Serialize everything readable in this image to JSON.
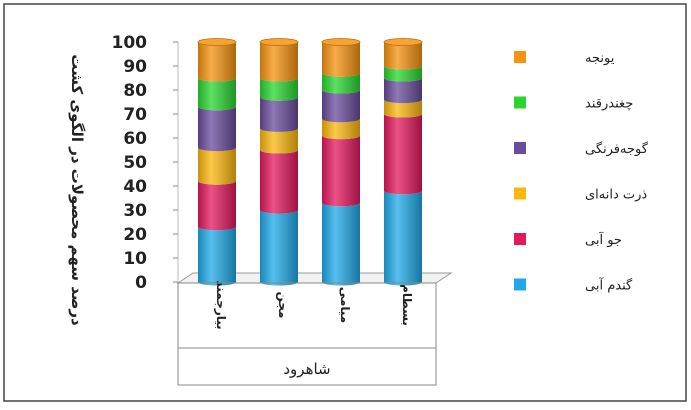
{
  "chart_data": {
    "type": "bar",
    "stacked": true,
    "ylabel": "درصد سهم محصولات در الگوی کشت",
    "xlabel": "شاهرود",
    "ylim": [
      0,
      100
    ],
    "yticks": [
      0,
      10,
      20,
      30,
      40,
      50,
      60,
      70,
      80,
      90,
      100
    ],
    "categories": [
      "بیارجمند",
      "مجن",
      "میامی",
      "بسطام"
    ],
    "legend_position": "right",
    "grid": false,
    "series": [
      {
        "name": "گندم آبی",
        "color": "#1fa9e8",
        "values": [
          23,
          30,
          33,
          38
        ]
      },
      {
        "name": "جو آبی",
        "color": "#e3185e",
        "values": [
          19,
          25,
          28,
          32
        ]
      },
      {
        "name": "ذرت دانه‌ای",
        "color": "#fbb70d",
        "values": [
          14,
          9,
          7,
          6
        ]
      },
      {
        "name": "گوجه‌فرنگی",
        "color": "#6a4c9c",
        "values": [
          17,
          13,
          12,
          9
        ]
      },
      {
        "name": "چغندرقند",
        "color": "#2ad530",
        "values": [
          12,
          8,
          7,
          5
        ]
      },
      {
        "name": "یونجه",
        "color": "#f5920f",
        "values": [
          15,
          15,
          13,
          10
        ]
      }
    ]
  }
}
